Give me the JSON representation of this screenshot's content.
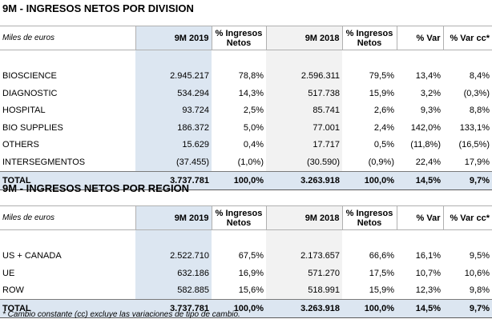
{
  "division": {
    "title": "9M - INGRESOS NETOS POR DIVISION",
    "headers": {
      "unit": "Miles de euros",
      "y2019": "9M 2019",
      "pct1": "% Ingresos Netos",
      "y2018": "9M 2018",
      "pct2": "% Ingresos Netos",
      "var": "% Var",
      "varcc": "% Var cc*"
    },
    "rows": [
      {
        "label": "BIOSCIENCE",
        "v2019": "2.945.217",
        "p2019": "78,8%",
        "v2018": "2.596.311",
        "p2018": "79,5%",
        "var": "13,4%",
        "varcc": "8,4%"
      },
      {
        "label": "DIAGNOSTIC",
        "v2019": "534.294",
        "p2019": "14,3%",
        "v2018": "517.738",
        "p2018": "15,9%",
        "var": "3,2%",
        "varcc": "(0,3%)"
      },
      {
        "label": "HOSPITAL",
        "v2019": "93.724",
        "p2019": "2,5%",
        "v2018": "85.741",
        "p2018": "2,6%",
        "var": "9,3%",
        "varcc": "8,8%"
      },
      {
        "label": "BIO SUPPLIES",
        "v2019": "186.372",
        "p2019": "5,0%",
        "v2018": "77.001",
        "p2018": "2,4%",
        "var": "142,0%",
        "varcc": "133,1%"
      },
      {
        "label": "OTHERS",
        "v2019": "15.629",
        "p2019": "0,4%",
        "v2018": "17.717",
        "p2018": "0,5%",
        "var": "(11,8%)",
        "varcc": "(16,5%)"
      },
      {
        "label": "INTERSEGMENTOS",
        "v2019": "(37.455)",
        "p2019": "(1,0%)",
        "v2018": "(30.590)",
        "p2018": "(0,9%)",
        "var": "22,4%",
        "varcc": "17,9%"
      }
    ],
    "total": {
      "label": "TOTAL",
      "v2019": "3.737.781",
      "p2019": "100,0%",
      "v2018": "3.263.918",
      "p2018": "100,0%",
      "var": "14,5%",
      "varcc": "9,7%"
    }
  },
  "region": {
    "title": "9M - INGRESOS NETOS POR REGION",
    "headers": {
      "unit": "Miles de euros",
      "y2019": "9M 2019",
      "pct1": "% Ingresos Netos",
      "y2018": "9M 2018",
      "pct2": "% Ingresos Netos",
      "var": "% Var",
      "varcc": "% Var cc*"
    },
    "rows": [
      {
        "label": "US + CANADA",
        "v2019": "2.522.710",
        "p2019": "67,5%",
        "v2018": "2.173.657",
        "p2018": "66,6%",
        "var": "16,1%",
        "varcc": "9,5%"
      },
      {
        "label": "UE",
        "v2019": "632.186",
        "p2019": "16,9%",
        "v2018": "571.270",
        "p2018": "17,5%",
        "var": "10,7%",
        "varcc": "10,6%"
      },
      {
        "label": "ROW",
        "v2019": "582.885",
        "p2019": "15,6%",
        "v2018": "518.991",
        "p2018": "15,9%",
        "var": "12,3%",
        "varcc": "9,8%"
      }
    ],
    "total": {
      "label": "TOTAL",
      "v2019": "3.737.781",
      "p2019": "100,0%",
      "v2018": "3.263.918",
      "p2018": "100,0%",
      "var": "14,5%",
      "varcc": "9,7%"
    }
  },
  "footnote": "* Cambio constante (cc) excluye las variaciones de tipo de cambio.",
  "colors": {
    "highlight_2019": "#dce6f1",
    "highlight_2018": "#f2f2f2",
    "total_row": "#dce6f1"
  }
}
